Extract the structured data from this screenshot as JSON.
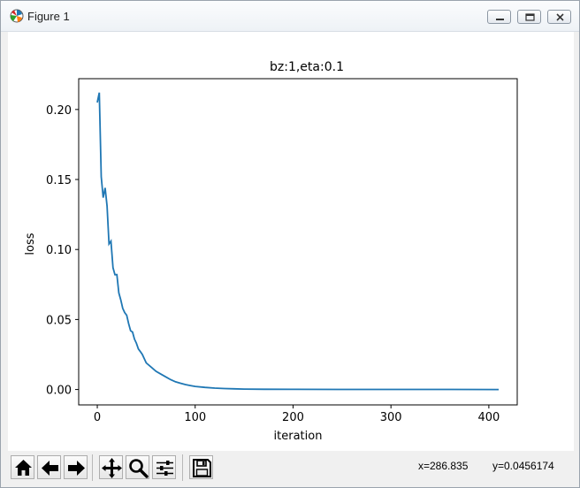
{
  "window": {
    "title": "Figure 1",
    "icon": "matplotlib-icon",
    "controls": [
      "minimize-icon",
      "maximize-icon",
      "close-icon"
    ]
  },
  "chart_data": {
    "type": "line",
    "title": "bz:1,eta:0.1",
    "xlabel": "iteration",
    "ylabel": "loss",
    "xlim": [
      -19,
      429
    ],
    "ylim": [
      -0.011,
      0.222
    ],
    "x_ticks": [
      0,
      100,
      200,
      300,
      400
    ],
    "x_tick_labels": [
      "0",
      "100",
      "200",
      "300",
      "400"
    ],
    "y_ticks": [
      0.0,
      0.05,
      0.1,
      0.15,
      0.2
    ],
    "y_tick_labels": [
      "0.00",
      "0.05",
      "0.10",
      "0.15",
      "0.20"
    ],
    "grid": false,
    "series_color": "#1f77b4",
    "series": [
      {
        "x": [
          0,
          2,
          4,
          6,
          8,
          10,
          12,
          14,
          16,
          18,
          20,
          22,
          24,
          26,
          28,
          30,
          32,
          34,
          36,
          38,
          40,
          42,
          44,
          46,
          48,
          50,
          55,
          60,
          65,
          70,
          75,
          80,
          85,
          90,
          95,
          100,
          110,
          120,
          130,
          140,
          150,
          170,
          200,
          250,
          300,
          350,
          410
        ],
        "y": [
          0.205,
          0.212,
          0.152,
          0.137,
          0.144,
          0.131,
          0.104,
          0.106,
          0.087,
          0.082,
          0.082,
          0.069,
          0.064,
          0.058,
          0.055,
          0.053,
          0.047,
          0.042,
          0.041,
          0.036,
          0.033,
          0.029,
          0.027,
          0.025,
          0.022,
          0.019,
          0.016,
          0.013,
          0.011,
          0.009,
          0.007,
          0.0055,
          0.0045,
          0.0035,
          0.0028,
          0.0022,
          0.0015,
          0.001,
          0.0007,
          0.0005,
          0.0003,
          0.0002,
          0.0001,
          5e-05,
          3e-05,
          2e-05,
          1e-05
        ]
      }
    ]
  },
  "toolbar": {
    "buttons": [
      "home-icon",
      "back-arrow-icon",
      "forward-arrow-icon",
      "pan-icon",
      "zoom-icon",
      "configure-subplots-icon",
      "save-icon"
    ],
    "x_readout": "x=286.835",
    "y_readout": "y=0.0456174"
  }
}
